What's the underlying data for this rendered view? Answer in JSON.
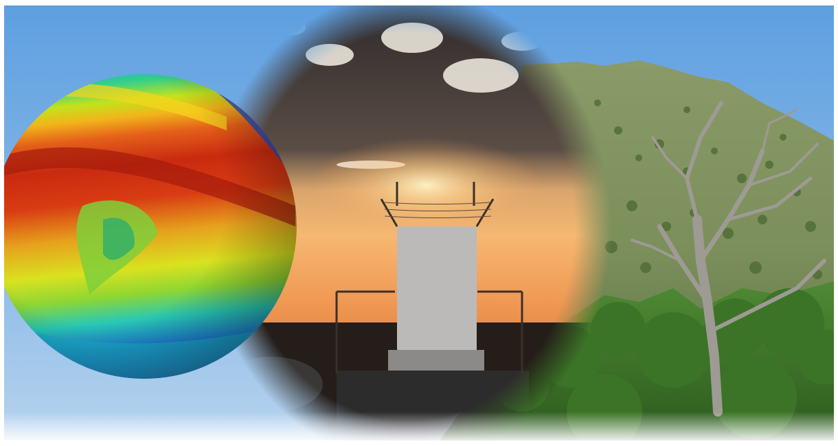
{
  "composite": {
    "panels": [
      "earth-climate-globe",
      "sunset-research-tower",
      "juniper-hillside"
    ],
    "colors": {
      "sky_blue": "#7ab1e3",
      "sunset_orange": "#f3a45a",
      "cloud_dark": "#4a4443",
      "hill_green": "#7f9362",
      "shrub_green": "#3f7a2c",
      "globe_red": "#d33214",
      "globe_yellow": "#e6df1e",
      "globe_cyan": "#1fc7c3",
      "globe_blue": "#1b3fb8",
      "frame_white": "#ffffff"
    }
  }
}
